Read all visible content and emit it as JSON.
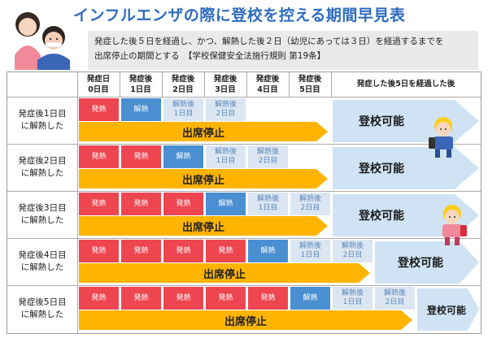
{
  "title": "インフルエンザの際に登校を控える期間早見表",
  "subtitle_line1": "発症した後５日を経過し、かつ、解熱した後２日（幼児にあっては３日）を経過するまでを",
  "subtitle_line2": "出席停止の期間とする　【学校保健安全法施行規則 第19条】",
  "headers": [
    {
      "line1": "発症日",
      "line2": "0日目"
    },
    {
      "line1": "発症後",
      "line2": "1日目"
    },
    {
      "line1": "発症後",
      "line2": "2日目"
    },
    {
      "line1": "発症後",
      "line2": "3日目"
    },
    {
      "line1": "発症後",
      "line2": "4日目"
    },
    {
      "line1": "発症後",
      "line2": "5日目"
    }
  ],
  "header_after": "発症した後5日を経過した後",
  "rows": [
    {
      "label1": "発症後1日目",
      "label2": "に解熱した"
    },
    {
      "label1": "発症後2日目",
      "label2": "に解熱した"
    },
    {
      "label1": "発症後3日目",
      "label2": "に解熱した"
    },
    {
      "label1": "発症後4日目",
      "label2": "に解熱した"
    },
    {
      "label1": "発症後5日目",
      "label2": "に解熱した"
    }
  ],
  "labels": {
    "onset": "発熱",
    "fever_down": "解熱",
    "after_fever": "解熱後",
    "day1": "1日目",
    "day2": "2日目",
    "stop": "出席停止",
    "ok": "登校可能"
  },
  "colors": {
    "title": "#2e6cc0",
    "onset": "#ee4650",
    "fever_down": "#4a8fd2",
    "after_fever": "#dce6f3",
    "stop_bar": "#ffb400",
    "ok_arrow": "#cfe3f4"
  }
}
